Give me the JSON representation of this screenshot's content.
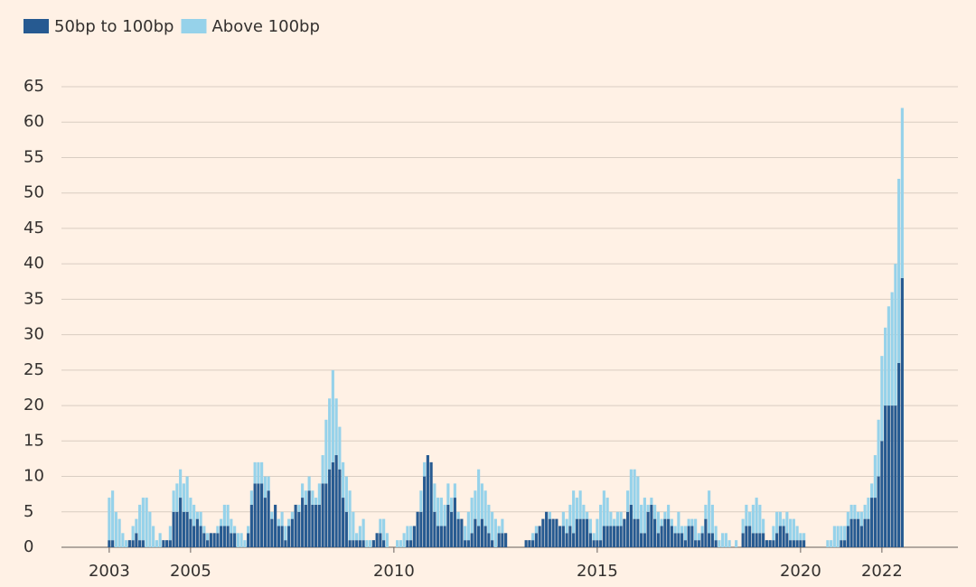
{
  "chart_data": {
    "type": "stacked-bar",
    "categories": [
      "2003",
      null,
      null,
      null,
      null,
      null,
      null,
      null,
      null,
      null,
      null,
      null,
      null,
      null,
      null,
      null,
      null,
      null,
      null,
      null,
      null,
      null,
      null,
      null,
      "2005",
      null,
      null,
      null,
      null,
      null,
      null,
      null,
      null,
      null,
      null,
      null,
      null,
      null,
      null,
      null,
      null,
      null,
      null,
      null,
      null,
      null,
      null,
      null,
      null,
      null,
      null,
      null,
      null,
      null,
      null,
      null,
      null,
      null,
      null,
      null,
      null,
      null,
      null,
      null,
      null,
      null,
      null,
      null,
      null,
      null,
      null,
      null,
      null,
      null,
      null,
      null,
      null,
      null,
      null,
      null,
      null,
      null,
      null,
      null,
      "2010",
      null,
      null,
      null,
      null,
      null,
      null,
      null,
      null,
      null,
      null,
      null,
      null,
      null,
      null,
      null,
      null,
      null,
      null,
      null,
      null,
      null,
      null,
      null,
      null,
      null,
      null,
      null,
      null,
      null,
      null,
      null,
      null,
      null,
      null,
      null,
      null,
      null,
      null,
      null,
      null,
      null,
      null,
      null,
      null,
      null,
      null,
      null,
      null,
      null,
      null,
      null,
      null,
      null,
      null,
      null,
      null,
      null,
      null,
      null,
      "2015",
      null,
      null,
      null,
      null,
      null,
      null,
      null,
      null,
      null,
      null,
      null,
      null,
      null,
      null,
      null,
      null,
      null,
      null,
      null,
      null,
      null,
      null,
      null,
      null,
      null,
      null,
      null,
      null,
      null,
      null,
      null,
      null,
      null,
      null,
      null,
      null,
      null,
      null,
      null,
      null,
      null,
      null,
      null,
      null,
      null,
      null,
      null,
      null,
      null,
      null,
      null,
      null,
      null,
      null,
      null,
      null,
      null,
      null,
      null,
      "2020",
      null,
      null,
      null,
      null,
      null,
      null,
      null,
      null,
      null,
      null,
      null,
      null,
      null,
      null,
      null,
      null,
      null,
      null,
      null,
      null,
      null,
      null,
      null,
      "2022",
      null,
      null,
      null,
      null,
      null,
      null
    ],
    "series": [
      {
        "name": "50bp to 100bp",
        "color": "#265a91",
        "values": [
          1,
          1,
          0,
          0,
          0,
          0,
          1,
          1,
          2,
          1,
          1,
          0,
          0,
          0,
          0,
          0,
          1,
          1,
          1,
          5,
          5,
          7,
          5,
          5,
          4,
          3,
          4,
          3,
          2,
          1,
          2,
          2,
          2,
          3,
          3,
          3,
          2,
          2,
          0,
          0,
          0,
          2,
          6,
          9,
          9,
          9,
          7,
          8,
          4,
          6,
          3,
          3,
          1,
          3,
          4,
          6,
          5,
          7,
          6,
          8,
          6,
          6,
          6,
          9,
          9,
          11,
          12,
          13,
          11,
          7,
          5,
          1,
          1,
          1,
          1,
          1,
          0,
          0,
          1,
          2,
          2,
          1,
          0,
          0,
          0,
          0,
          0,
          0,
          1,
          1,
          3,
          5,
          5,
          10,
          13,
          12,
          5,
          3,
          3,
          3,
          6,
          5,
          7,
          4,
          4,
          1,
          1,
          2,
          4,
          3,
          4,
          3,
          2,
          1,
          0,
          2,
          2,
          2,
          0,
          0,
          0,
          0,
          0,
          1,
          1,
          1,
          2,
          3,
          4,
          5,
          4,
          4,
          4,
          3,
          3,
          2,
          3,
          2,
          4,
          4,
          4,
          4,
          2,
          1,
          1,
          1,
          3,
          3,
          3,
          3,
          3,
          3,
          4,
          5,
          6,
          4,
          4,
          2,
          2,
          5,
          6,
          4,
          2,
          3,
          4,
          4,
          3,
          2,
          2,
          2,
          1,
          3,
          3,
          1,
          1,
          2,
          4,
          2,
          2,
          1,
          0,
          0,
          0,
          0,
          0,
          0,
          0,
          2,
          3,
          3,
          2,
          2,
          2,
          2,
          1,
          1,
          1,
          2,
          3,
          3,
          2,
          1,
          1,
          1,
          1,
          1,
          0,
          0,
          0,
          0,
          0,
          0,
          0,
          0,
          0,
          0,
          1,
          1,
          3,
          4,
          4,
          4,
          3,
          4,
          4,
          7,
          7,
          10,
          15,
          20,
          20,
          20,
          20,
          26,
          38
        ]
      },
      {
        "name": "Above 100bp",
        "color": "#96d2ea",
        "values": [
          6,
          7,
          5,
          4,
          2,
          1,
          0,
          2,
          2,
          5,
          6,
          7,
          5,
          3,
          1,
          2,
          0,
          0,
          2,
          3,
          4,
          4,
          4,
          5,
          3,
          3,
          1,
          2,
          1,
          1,
          0,
          0,
          1,
          1,
          3,
          3,
          2,
          1,
          2,
          2,
          1,
          1,
          2,
          3,
          3,
          3,
          3,
          2,
          1,
          0,
          1,
          2,
          2,
          1,
          1,
          0,
          1,
          2,
          2,
          2,
          2,
          1,
          3,
          4,
          9,
          10,
          13,
          8,
          6,
          5,
          5,
          7,
          4,
          1,
          2,
          3,
          1,
          1,
          0,
          0,
          2,
          3,
          2,
          0,
          0,
          1,
          1,
          2,
          2,
          2,
          0,
          0,
          3,
          2,
          0,
          0,
          4,
          4,
          4,
          3,
          3,
          2,
          2,
          1,
          0,
          2,
          4,
          5,
          4,
          8,
          5,
          5,
          4,
          4,
          4,
          1,
          2,
          0,
          0,
          0,
          0,
          0,
          0,
          0,
          0,
          1,
          1,
          0,
          0,
          0,
          1,
          0,
          0,
          0,
          2,
          2,
          3,
          6,
          3,
          4,
          2,
          1,
          2,
          1,
          3,
          5,
          5,
          4,
          2,
          1,
          2,
          2,
          0,
          3,
          5,
          7,
          6,
          4,
          5,
          1,
          1,
          2,
          3,
          1,
          1,
          2,
          1,
          1,
          3,
          1,
          2,
          1,
          1,
          3,
          1,
          1,
          2,
          6,
          4,
          2,
          1,
          2,
          2,
          1,
          0,
          1,
          0,
          2,
          3,
          2,
          4,
          5,
          4,
          2,
          0,
          0,
          2,
          3,
          2,
          1,
          3,
          3,
          3,
          2,
          1,
          1,
          0,
          0,
          0,
          0,
          0,
          0,
          1,
          1,
          3,
          3,
          2,
          2,
          2,
          2,
          2,
          1,
          2,
          2,
          3,
          2,
          6,
          8,
          12,
          11,
          14,
          16,
          20,
          26,
          24
        ]
      }
    ],
    "ylim": [
      0,
      65
    ],
    "yticks": [
      0,
      5,
      10,
      15,
      20,
      25,
      30,
      35,
      40,
      45,
      50,
      55,
      60,
      65
    ],
    "grid": true
  }
}
